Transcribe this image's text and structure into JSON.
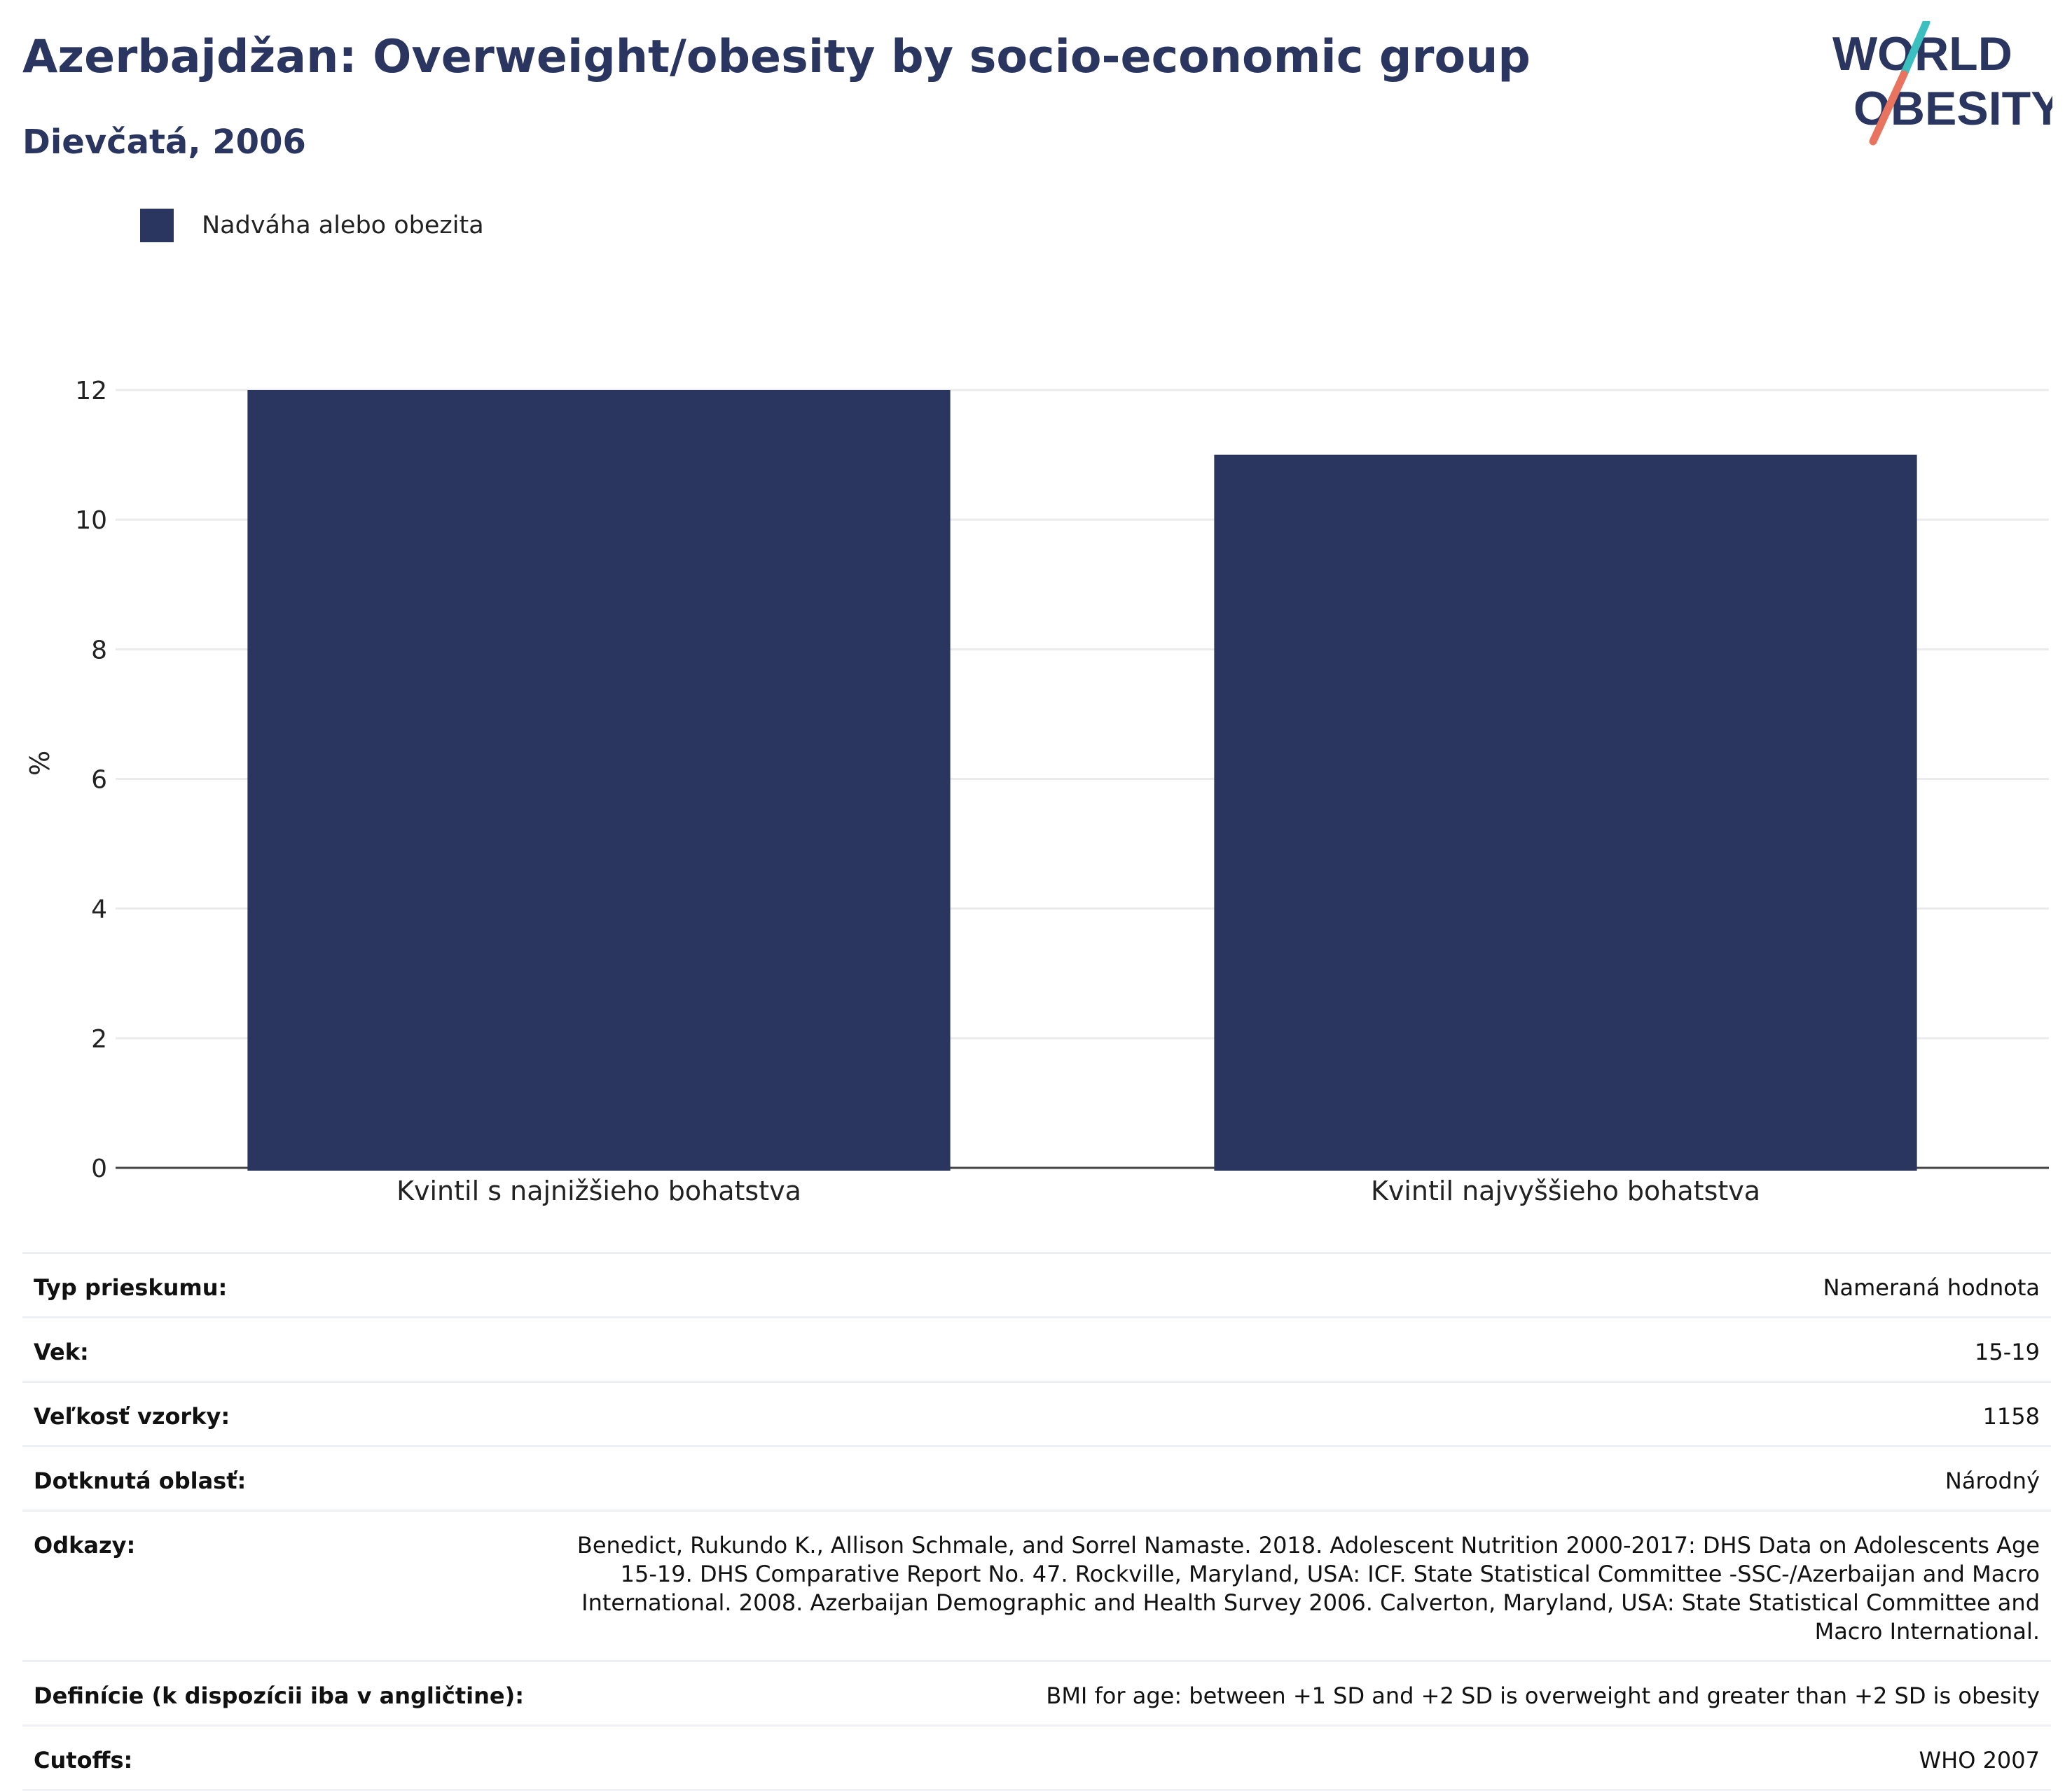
{
  "header": {
    "title": "Azerbajdžan: Overweight/obesity by socio-economic group",
    "subtitle": "Dievčatá, 2006"
  },
  "logo": {
    "line1": "WORLD",
    "line2": "OBESITY",
    "slash_colors": [
      "#3cbfbf",
      "#e8735f"
    ]
  },
  "legend": {
    "items": [
      {
        "label": "Nadváha alebo obezita",
        "color": "#2a3660"
      }
    ]
  },
  "chart_data": {
    "type": "bar",
    "title": "Azerbajdžan: Overweight/obesity by socio-economic group",
    "subtitle": "Dievčatá, 2006",
    "xlabel": "",
    "ylabel": "%",
    "categories": [
      "Kvintil s najnižšieho bohatstva",
      "Kvintil najvyššieho bohatstva"
    ],
    "series": [
      {
        "name": "Nadváha alebo obezita",
        "values": [
          12,
          11
        ],
        "color": "#2a3660"
      }
    ],
    "ylim": [
      0,
      12
    ],
    "yticks": [
      0,
      2,
      4,
      6,
      8,
      10,
      12
    ],
    "grid": true,
    "legend_position": "top-left"
  },
  "info": {
    "rows": [
      {
        "label": "Typ prieskumu:",
        "value": "Nameraná hodnota"
      },
      {
        "label": "Vek:",
        "value": "15-19"
      },
      {
        "label": "Veľkosť vzorky:",
        "value": "1158"
      },
      {
        "label": "Dotknutá oblasť:",
        "value": "Národný"
      },
      {
        "label": "Odkazy:",
        "value": "Benedict, Rukundo K., Allison Schmale, and Sorrel Namaste. 2018. Adolescent Nutrition 2000-2017: DHS Data on Adolescents Age 15-19. DHS Comparative Report No. 47. Rockville, Maryland, USA: ICF. State Statistical Committee -SSC-/Azerbaijan and Macro International. 2008. Azerbaijan Demographic and Health Survey 2006. Calverton, Maryland, USA: State Statistical Committee and Macro International."
      },
      {
        "label": "Definície (k dispozícii iba v angličtine):",
        "value": "BMI for age: between +1 SD and +2 SD is overweight and greater than +2 SD is obesity"
      },
      {
        "label": "Cutoffs:",
        "value": "WHO 2007"
      }
    ]
  }
}
